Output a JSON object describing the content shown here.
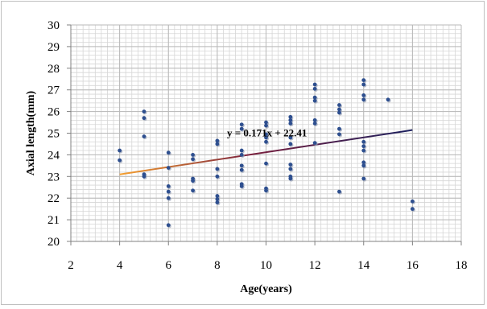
{
  "chart_data": {
    "type": "scatter",
    "title": "",
    "xlabel": "Age(years)",
    "ylabel": "Axial length(mm)",
    "xlim": [
      2,
      18
    ],
    "ylim": [
      20,
      30
    ],
    "xticks": [
      2,
      4,
      6,
      8,
      10,
      12,
      14,
      16,
      18
    ],
    "yticks": [
      20,
      21,
      22,
      23,
      24,
      25,
      26,
      27,
      28,
      29,
      30
    ],
    "grid": true,
    "series": [
      {
        "marker_color": "#2e4f8f",
        "points": [
          [
            4,
            24.2
          ],
          [
            4,
            23.75
          ],
          [
            5,
            26.0
          ],
          [
            5,
            25.7
          ],
          [
            5,
            24.85
          ],
          [
            5,
            23.1
          ],
          [
            5,
            23.0
          ],
          [
            6,
            24.1
          ],
          [
            6,
            23.4
          ],
          [
            6,
            22.55
          ],
          [
            6,
            22.3
          ],
          [
            6,
            22.0
          ],
          [
            6,
            20.75
          ],
          [
            7,
            24.0
          ],
          [
            7,
            23.8
          ],
          [
            7,
            22.9
          ],
          [
            7,
            22.8
          ],
          [
            7,
            22.35
          ],
          [
            8,
            24.65
          ],
          [
            8,
            24.5
          ],
          [
            8,
            23.35
          ],
          [
            8,
            23.0
          ],
          [
            8,
            22.1
          ],
          [
            8,
            21.95
          ],
          [
            8,
            21.8
          ],
          [
            9,
            25.4
          ],
          [
            9,
            25.2
          ],
          [
            9,
            24.2
          ],
          [
            9,
            24.0
          ],
          [
            9,
            23.5
          ],
          [
            9,
            23.3
          ],
          [
            9,
            22.65
          ],
          [
            9,
            22.55
          ],
          [
            10,
            25.5
          ],
          [
            10,
            25.35
          ],
          [
            10,
            24.95
          ],
          [
            10,
            24.8
          ],
          [
            10,
            24.6
          ],
          [
            10,
            23.6
          ],
          [
            10,
            22.45
          ],
          [
            10,
            22.35
          ],
          [
            11,
            25.75
          ],
          [
            11,
            25.6
          ],
          [
            11,
            25.45
          ],
          [
            11,
            24.8
          ],
          [
            11,
            24.5
          ],
          [
            11,
            23.55
          ],
          [
            11,
            23.35
          ],
          [
            11,
            23.0
          ],
          [
            11,
            22.9
          ],
          [
            12,
            27.25
          ],
          [
            12,
            27.05
          ],
          [
            12,
            26.65
          ],
          [
            12,
            26.5
          ],
          [
            12,
            25.6
          ],
          [
            12,
            25.45
          ],
          [
            12,
            24.55
          ],
          [
            13,
            26.3
          ],
          [
            13,
            26.1
          ],
          [
            13,
            25.95
          ],
          [
            13,
            25.2
          ],
          [
            13,
            24.95
          ],
          [
            13,
            22.3
          ],
          [
            14,
            27.45
          ],
          [
            14,
            27.25
          ],
          [
            14,
            26.75
          ],
          [
            14,
            26.55
          ],
          [
            14,
            24.6
          ],
          [
            14,
            24.4
          ],
          [
            14,
            24.2
          ],
          [
            14,
            23.65
          ],
          [
            14,
            23.5
          ],
          [
            14,
            22.9
          ],
          [
            15,
            26.55
          ],
          [
            16,
            21.85
          ],
          [
            16,
            21.5
          ]
        ]
      }
    ],
    "trendline": {
      "equation": "y = 0.171x + 22.41",
      "slope": 0.171,
      "intercept": 22.41,
      "x_range": [
        4,
        16
      ],
      "gradient_colors": [
        "#f5a030",
        "#7a1f3d",
        "#1a1f5e"
      ]
    }
  }
}
